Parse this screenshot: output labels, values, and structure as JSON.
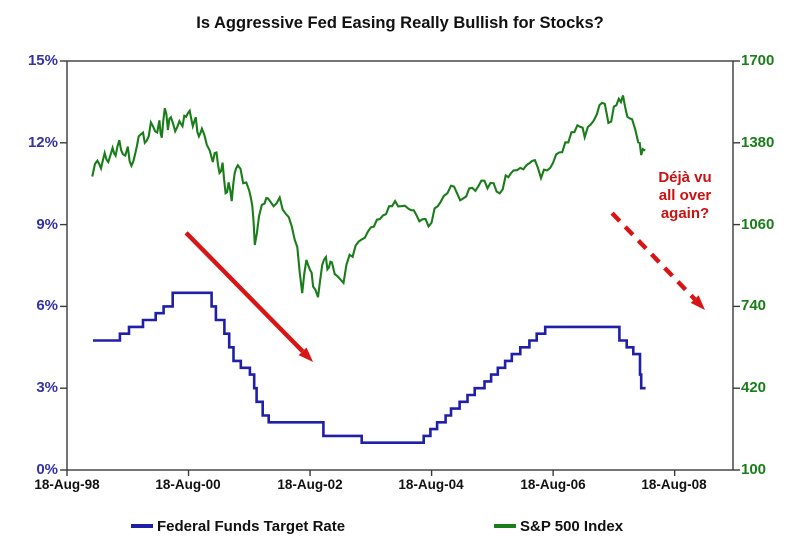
{
  "chart_data": {
    "type": "line",
    "title": "Is Aggressive Fed Easing Really Bullish for Stocks?",
    "x_unit": "years since 18-Aug-1998",
    "x_range": [
      0,
      10.96
    ],
    "x_tick_positions": [
      0,
      2,
      4,
      6,
      8,
      10
    ],
    "x_tick_labels": [
      "18-Aug-98",
      "18-Aug-00",
      "18-Aug-02",
      "18-Aug-04",
      "18-Aug-06",
      "18-Aug-08"
    ],
    "left_axis": {
      "min": 0,
      "max": 15,
      "tick_step": 3,
      "format": "percent",
      "tick_labels": [
        "15%",
        "12%",
        "9%",
        "6%",
        "3%",
        "0%"
      ],
      "color": "#3333a8"
    },
    "right_axis": {
      "min": 100,
      "max": 1700,
      "tick_step": 320,
      "tick_labels": [
        "1700",
        "1380",
        "1060",
        "740",
        "420",
        "100"
      ],
      "color": "#1a7d1a"
    },
    "grid": false,
    "legend_position": "bottom",
    "series": [
      {
        "name": "Federal Funds Target Rate",
        "axis": "left",
        "style": "step",
        "color": "#1f1fa8",
        "width": 2.6,
        "points": [
          [
            0.45,
            4.75
          ],
          [
            0.87,
            5.0
          ],
          [
            1.02,
            5.25
          ],
          [
            1.25,
            5.5
          ],
          [
            1.46,
            5.75
          ],
          [
            1.59,
            6.0
          ],
          [
            1.74,
            6.5
          ],
          [
            2.38,
            6.0
          ],
          [
            2.45,
            5.5
          ],
          [
            2.59,
            5.0
          ],
          [
            2.67,
            4.5
          ],
          [
            2.74,
            4.0
          ],
          [
            2.86,
            3.75
          ],
          [
            3.01,
            3.5
          ],
          [
            3.08,
            3.0
          ],
          [
            3.12,
            2.5
          ],
          [
            3.22,
            2.0
          ],
          [
            3.32,
            1.75
          ],
          [
            4.22,
            1.25
          ],
          [
            4.85,
            1.0
          ],
          [
            5.87,
            1.25
          ],
          [
            5.98,
            1.5
          ],
          [
            6.09,
            1.75
          ],
          [
            6.23,
            2.0
          ],
          [
            6.32,
            2.25
          ],
          [
            6.46,
            2.5
          ],
          [
            6.59,
            2.75
          ],
          [
            6.71,
            3.0
          ],
          [
            6.87,
            3.25
          ],
          [
            6.98,
            3.5
          ],
          [
            7.09,
            3.75
          ],
          [
            7.21,
            4.0
          ],
          [
            7.32,
            4.25
          ],
          [
            7.46,
            4.5
          ],
          [
            7.61,
            4.75
          ],
          [
            7.73,
            5.0
          ],
          [
            7.87,
            5.25
          ],
          [
            9.09,
            4.75
          ],
          [
            9.21,
            4.5
          ],
          [
            9.32,
            4.25
          ],
          [
            9.43,
            3.5
          ],
          [
            9.45,
            3.0
          ],
          [
            9.5,
            3.0
          ]
        ]
      },
      {
        "name": "S&P 500 Index",
        "axis": "right",
        "style": "noisy-line",
        "color": "#1a7d1a",
        "width": 2.1,
        "points": [
          [
            0.42,
            1252
          ],
          [
            0.5,
            1310
          ],
          [
            0.56,
            1280
          ],
          [
            0.62,
            1340
          ],
          [
            0.68,
            1305
          ],
          [
            0.75,
            1360
          ],
          [
            0.8,
            1330
          ],
          [
            0.86,
            1390
          ],
          [
            0.92,
            1335
          ],
          [
            1.0,
            1365
          ],
          [
            1.06,
            1290
          ],
          [
            1.12,
            1335
          ],
          [
            1.18,
            1405
          ],
          [
            1.25,
            1420
          ],
          [
            1.31,
            1388
          ],
          [
            1.38,
            1460
          ],
          [
            1.45,
            1425
          ],
          [
            1.52,
            1468
          ],
          [
            1.56,
            1400
          ],
          [
            1.61,
            1515
          ],
          [
            1.66,
            1430
          ],
          [
            1.71,
            1480
          ],
          [
            1.78,
            1425
          ],
          [
            1.85,
            1465
          ],
          [
            1.9,
            1445
          ],
          [
            1.96,
            1482
          ],
          [
            2.02,
            1505
          ],
          [
            2.07,
            1445
          ],
          [
            2.12,
            1480
          ],
          [
            2.17,
            1405
          ],
          [
            2.22,
            1435
          ],
          [
            2.3,
            1372
          ],
          [
            2.4,
            1305
          ],
          [
            2.46,
            1342
          ],
          [
            2.51,
            1262
          ],
          [
            2.56,
            1302
          ],
          [
            2.61,
            1183
          ],
          [
            2.66,
            1225
          ],
          [
            2.71,
            1152
          ],
          [
            2.76,
            1262
          ],
          [
            2.81,
            1292
          ],
          [
            2.9,
            1222
          ],
          [
            3.0,
            1192
          ],
          [
            3.05,
            1133
          ],
          [
            3.09,
            980
          ],
          [
            3.16,
            1092
          ],
          [
            3.25,
            1142
          ],
          [
            3.31,
            1162
          ],
          [
            3.4,
            1132
          ],
          [
            3.5,
            1166
          ],
          [
            3.6,
            1102
          ],
          [
            3.7,
            1052
          ],
          [
            3.79,
            972
          ],
          [
            3.87,
            792
          ],
          [
            3.94,
            922
          ],
          [
            4.0,
            882
          ],
          [
            4.05,
            818
          ],
          [
            4.13,
            776
          ],
          [
            4.2,
            902
          ],
          [
            4.26,
            933
          ],
          [
            4.31,
            892
          ],
          [
            4.36,
            912
          ],
          [
            4.45,
            858
          ],
          [
            4.55,
            832
          ],
          [
            4.65,
            942
          ],
          [
            4.75,
            978
          ],
          [
            4.85,
            1002
          ],
          [
            4.95,
            1032
          ],
          [
            5.05,
            1052
          ],
          [
            5.15,
            1082
          ],
          [
            5.3,
            1132
          ],
          [
            5.4,
            1152
          ],
          [
            5.5,
            1132
          ],
          [
            5.62,
            1122
          ],
          [
            5.75,
            1097
          ],
          [
            5.9,
            1082
          ],
          [
            6.0,
            1068
          ],
          [
            6.1,
            1132
          ],
          [
            6.2,
            1172
          ],
          [
            6.32,
            1212
          ],
          [
            6.42,
            1182
          ],
          [
            6.52,
            1162
          ],
          [
            6.62,
            1202
          ],
          [
            6.72,
            1192
          ],
          [
            6.82,
            1232
          ],
          [
            6.92,
            1202
          ],
          [
            7.02,
            1222
          ],
          [
            7.12,
            1182
          ],
          [
            7.22,
            1252
          ],
          [
            7.35,
            1272
          ],
          [
            7.46,
            1282
          ],
          [
            7.56,
            1292
          ],
          [
            7.7,
            1312
          ],
          [
            7.8,
            1242
          ],
          [
            7.9,
            1272
          ],
          [
            8.0,
            1302
          ],
          [
            8.1,
            1342
          ],
          [
            8.2,
            1382
          ],
          [
            8.35,
            1422
          ],
          [
            8.45,
            1442
          ],
          [
            8.52,
            1402
          ],
          [
            8.62,
            1452
          ],
          [
            8.72,
            1492
          ],
          [
            8.85,
            1532
          ],
          [
            8.91,
            1458
          ],
          [
            9.0,
            1522
          ],
          [
            9.08,
            1552
          ],
          [
            9.15,
            1565
          ],
          [
            9.22,
            1482
          ],
          [
            9.3,
            1472
          ],
          [
            9.4,
            1382
          ],
          [
            9.45,
            1332
          ],
          [
            9.5,
            1352
          ]
        ]
      }
    ],
    "annotations": [
      {
        "type": "arrow",
        "stroke": "solid",
        "color": "#d81414",
        "from": [
          1.96,
          8.7
        ],
        "to": [
          4.05,
          3.96
        ],
        "y_axis": "left"
      },
      {
        "type": "arrow",
        "stroke": "dashed",
        "color": "#d81414",
        "from": [
          8.97,
          9.42
        ],
        "to": [
          10.5,
          5.87
        ],
        "y_axis": "left"
      },
      {
        "type": "text",
        "color": "#cc1111",
        "lines": [
          "Déjà vu",
          "all over",
          "again?"
        ]
      }
    ]
  },
  "axes_labels": {
    "left": [
      "15%",
      "12%",
      "9%",
      "6%",
      "3%",
      "0%"
    ],
    "right": [
      "1700",
      "1380",
      "1060",
      "740",
      "420",
      "100"
    ],
    "x": [
      "18-Aug-98",
      "18-Aug-00",
      "18-Aug-02",
      "18-Aug-04",
      "18-Aug-06",
      "18-Aug-08"
    ]
  },
  "annotation_text": {
    "line1": "Déjà vu",
    "line2": "all over",
    "line3": "again?"
  },
  "legend": {
    "items": [
      {
        "label": "Federal Funds Target Rate",
        "color": "#1f1fa8"
      },
      {
        "label": "S&P 500 Index",
        "color": "#1a7d1a"
      }
    ]
  }
}
